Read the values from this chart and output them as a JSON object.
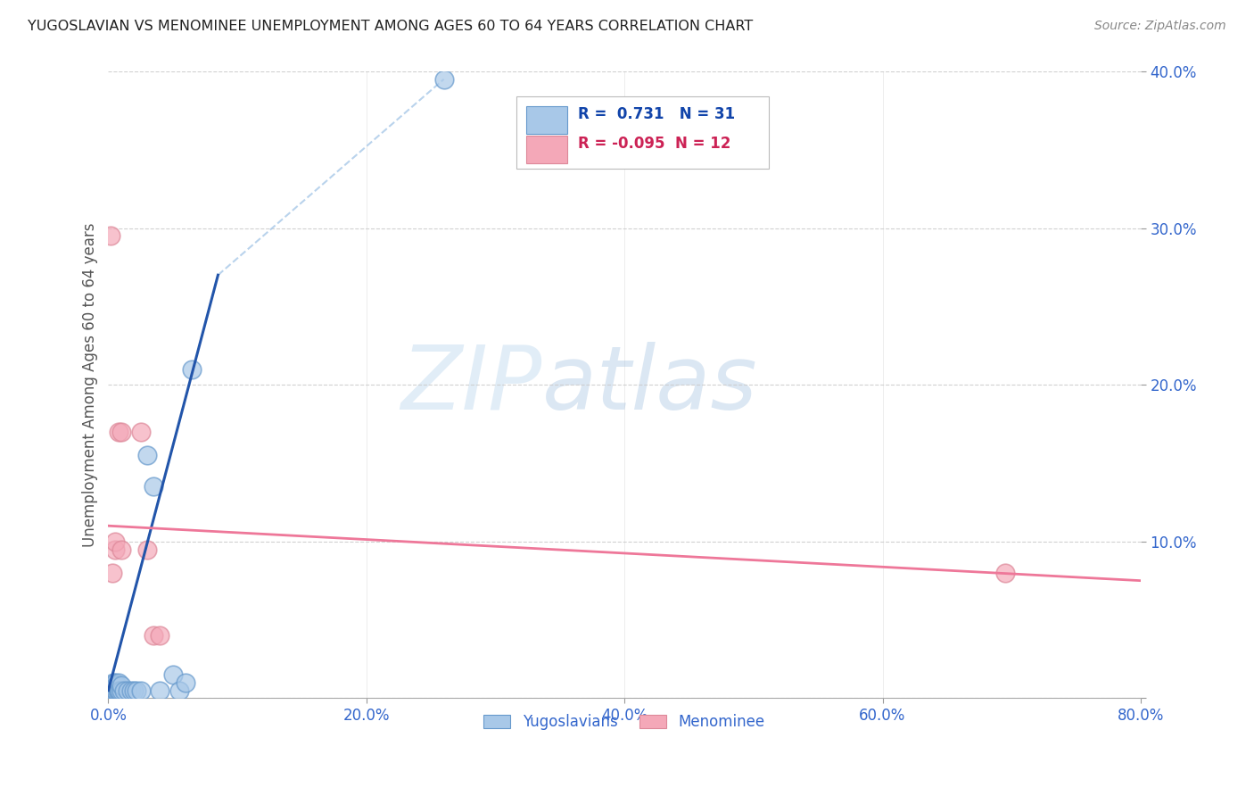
{
  "title": "YUGOSLAVIAN VS MENOMINEE UNEMPLOYMENT AMONG AGES 60 TO 64 YEARS CORRELATION CHART",
  "source": "Source: ZipAtlas.com",
  "ylabel": "Unemployment Among Ages 60 to 64 years",
  "xlim": [
    0.0,
    0.8
  ],
  "ylim": [
    0.0,
    0.4
  ],
  "xticks": [
    0.0,
    0.2,
    0.4,
    0.6,
    0.8
  ],
  "yticks": [
    0.0,
    0.1,
    0.2,
    0.3,
    0.4
  ],
  "xtick_labels": [
    "0.0%",
    "20.0%",
    "40.0%",
    "60.0%",
    "80.0%"
  ],
  "ytick_labels": [
    "",
    "10.0%",
    "20.0%",
    "30.0%",
    "40.0%"
  ],
  "blue_color": "#A8C8E8",
  "pink_color": "#F4A8B8",
  "blue_edge_color": "#6699CC",
  "pink_edge_color": "#DD8899",
  "blue_line_color": "#2255AA",
  "pink_line_color": "#EE7799",
  "watermark_zip": "ZIP",
  "watermark_atlas": "atlas",
  "legend_r_blue": "0.731",
  "legend_n_blue": "31",
  "legend_r_pink": "-0.095",
  "legend_n_pink": "12",
  "blue_scatter_x": [
    0.003,
    0.003,
    0.004,
    0.004,
    0.005,
    0.005,
    0.005,
    0.005,
    0.006,
    0.006,
    0.007,
    0.007,
    0.008,
    0.008,
    0.009,
    0.01,
    0.01,
    0.012,
    0.015,
    0.018,
    0.02,
    0.022,
    0.025,
    0.03,
    0.035,
    0.04,
    0.05,
    0.055,
    0.06,
    0.065,
    0.26
  ],
  "blue_scatter_y": [
    0.005,
    0.008,
    0.005,
    0.01,
    0.003,
    0.005,
    0.008,
    0.01,
    0.005,
    0.008,
    0.005,
    0.008,
    0.005,
    0.01,
    0.005,
    0.005,
    0.008,
    0.005,
    0.005,
    0.005,
    0.005,
    0.005,
    0.005,
    0.155,
    0.135,
    0.005,
    0.015,
    0.005,
    0.01,
    0.21,
    0.395
  ],
  "pink_scatter_x": [
    0.003,
    0.005,
    0.005,
    0.008,
    0.01,
    0.01,
    0.025,
    0.03,
    0.035,
    0.04,
    0.695,
    0.002
  ],
  "pink_scatter_y": [
    0.08,
    0.095,
    0.1,
    0.17,
    0.17,
    0.095,
    0.17,
    0.095,
    0.04,
    0.04,
    0.08,
    0.295
  ],
  "blue_line_x": [
    0.0,
    0.085
  ],
  "blue_line_y": [
    0.005,
    0.27
  ],
  "pink_line_x": [
    0.0,
    0.8
  ],
  "pink_line_y": [
    0.11,
    0.075
  ],
  "dashed_line_x": [
    0.085,
    0.26
  ],
  "dashed_line_y": [
    0.27,
    0.395
  ]
}
